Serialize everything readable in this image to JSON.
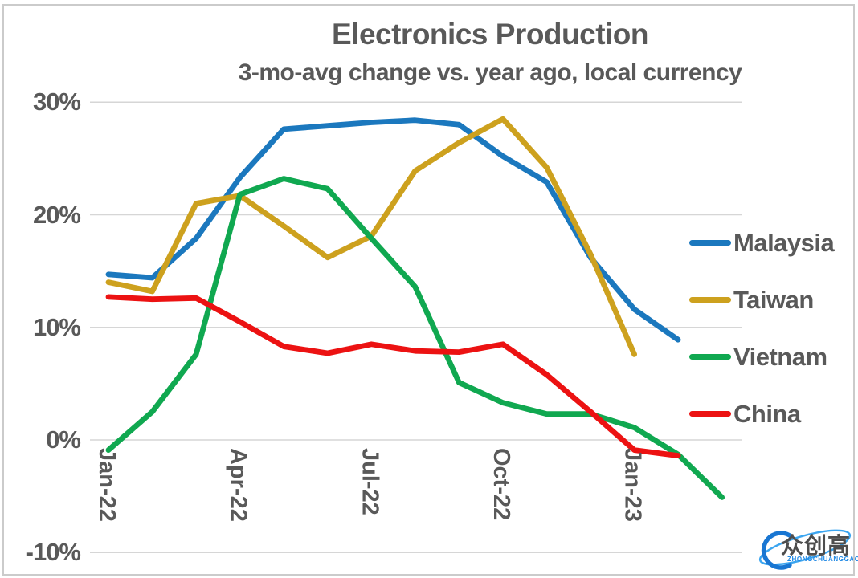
{
  "title": "Electronics Production",
  "subtitle": "3-mo-avg change vs. year ago, local currency",
  "watermark": {
    "cjk": "众创高",
    "latin": "ZHONGCHUANGGAO"
  },
  "colors": {
    "text": "#595959",
    "gridline": "#D6D6D6",
    "background": "#FFFFFF",
    "border": "#CBCBCB",
    "logo_dark_blue": "#1976D2",
    "logo_light_blue": "#3BA5F0",
    "logo_text": "#4D4D4D"
  },
  "chart_data": {
    "type": "line",
    "x": [
      "Jan-22",
      "Feb-22",
      "Mar-22",
      "Apr-22",
      "May-22",
      "Jun-22",
      "Jul-22",
      "Aug-22",
      "Sep-22",
      "Oct-22",
      "Nov-22",
      "Dec-22",
      "Jan-23",
      "Feb-23",
      "Mar-23"
    ],
    "x_tick_labels": [
      {
        "index": 0,
        "label": "Jan-22"
      },
      {
        "index": 3,
        "label": "Apr-22"
      },
      {
        "index": 6,
        "label": "Jul-22"
      },
      {
        "index": 9,
        "label": "Oct-22"
      },
      {
        "index": 12,
        "label": "Jan-23"
      }
    ],
    "y_ticks": [
      {
        "value": 30,
        "label": "30%"
      },
      {
        "value": 20,
        "label": "20%"
      },
      {
        "value": 10,
        "label": "10%"
      },
      {
        "value": 0,
        "label": "0%"
      },
      {
        "value": -10,
        "label": "-10%"
      }
    ],
    "ylim": [
      -10,
      30
    ],
    "unit": "percent",
    "grid": "horizontal",
    "legend_position": "right",
    "series": [
      {
        "name": "Malaysia",
        "color": "#1B78BE",
        "values": [
          14.7,
          14.4,
          17.9,
          23.3,
          27.6,
          27.9,
          28.2,
          28.4,
          28.0,
          25.2,
          22.9,
          16.2,
          11.6,
          8.9,
          null
        ]
      },
      {
        "name": "Taiwan",
        "color": "#CDA11E",
        "values": [
          14.0,
          13.2,
          21.0,
          21.7,
          19.0,
          16.2,
          18.1,
          23.9,
          26.4,
          28.5,
          24.2,
          16.5,
          7.6,
          null,
          null
        ]
      },
      {
        "name": "Vietnam",
        "color": "#10A850",
        "values": [
          -0.9,
          2.5,
          7.6,
          21.8,
          23.2,
          22.3,
          17.9,
          13.6,
          5.1,
          3.3,
          2.3,
          2.3,
          1.1,
          -1.3,
          -5.1
        ]
      },
      {
        "name": "China",
        "color": "#EC1212",
        "values": [
          12.7,
          12.5,
          12.6,
          10.5,
          8.3,
          7.7,
          8.5,
          7.9,
          7.8,
          8.5,
          5.8,
          2.5,
          -0.9,
          -1.4,
          null
        ]
      }
    ]
  }
}
